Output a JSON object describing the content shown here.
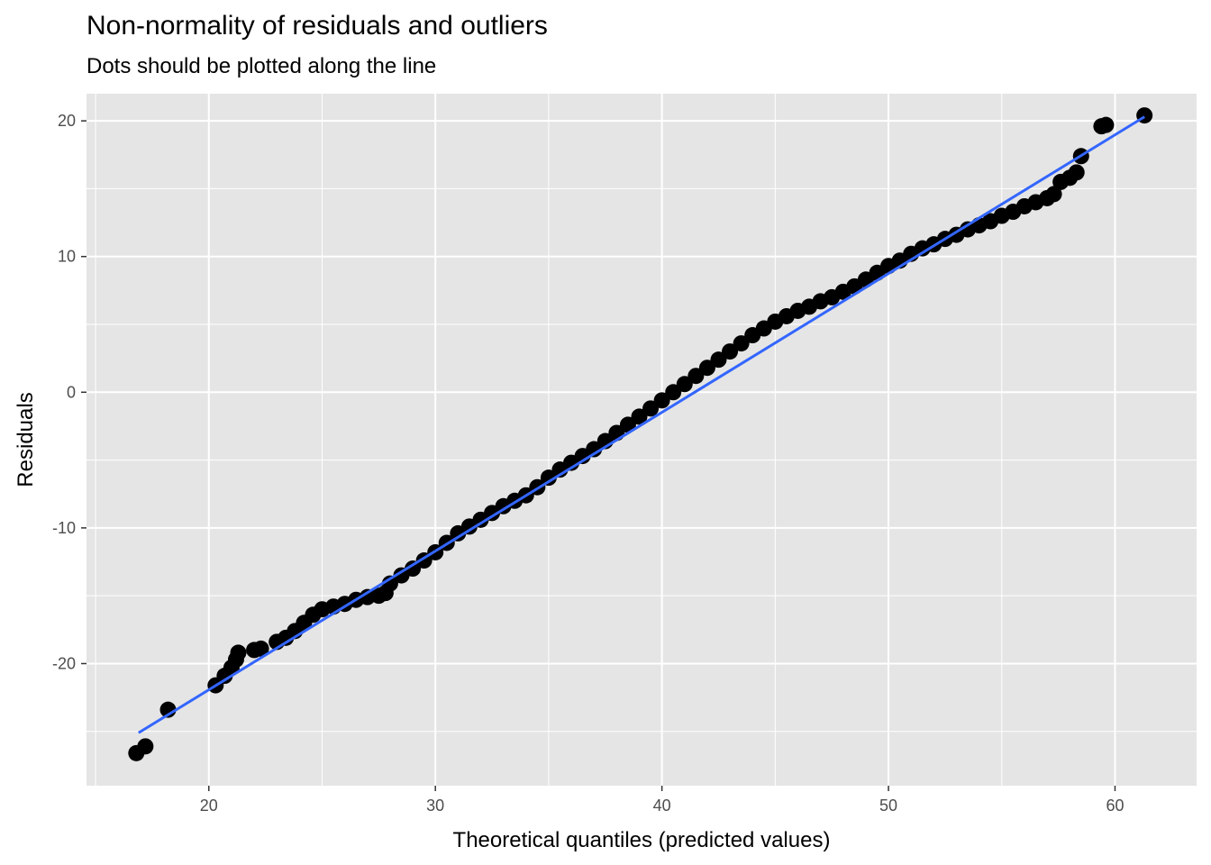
{
  "chart_data": {
    "type": "scatter",
    "title": "Non-normality of residuals and outliers",
    "subtitle": "Dots should be plotted along the line",
    "xlabel": "Theoretical quantiles (predicted values)",
    "ylabel": "Residuals",
    "xlim": [
      14.6,
      63.6
    ],
    "ylim": [
      -29.0,
      22.0
    ],
    "x_ticks": [
      20,
      30,
      40,
      50,
      60
    ],
    "y_ticks": [
      -20,
      -10,
      0,
      10,
      20
    ],
    "x_tick_labels": [
      "20",
      "30",
      "40",
      "50",
      "60"
    ],
    "y_tick_labels": [
      "-20",
      "-10",
      "0",
      "10",
      "20"
    ],
    "grid": true,
    "colors": {
      "panel": "#e5e5e5",
      "grid": "#ffffff",
      "points": "#000000",
      "line": "#3366ff"
    },
    "reference_line": {
      "x": [
        16.9,
        61.3
      ],
      "y": [
        -25.1,
        20.3
      ]
    },
    "points": {
      "x": [
        16.8,
        17.2,
        18.2,
        20.3,
        20.7,
        21.0,
        21.2,
        21.3,
        22.0,
        22.3,
        23.0,
        23.4,
        23.8,
        24.2,
        24.6,
        25.0,
        25.5,
        26.0,
        26.5,
        27.0,
        27.5,
        27.8,
        28.0,
        28.5,
        29.0,
        29.5,
        30.0,
        30.5,
        31.0,
        31.5,
        32.0,
        32.5,
        33.0,
        33.5,
        34.0,
        34.5,
        35.0,
        35.5,
        36.0,
        36.5,
        37.0,
        37.5,
        38.0,
        38.5,
        39.0,
        39.5,
        40.0,
        40.5,
        41.0,
        41.5,
        42.0,
        42.5,
        43.0,
        43.5,
        44.0,
        44.5,
        45.0,
        45.5,
        46.0,
        46.5,
        47.0,
        47.5,
        48.0,
        48.5,
        49.0,
        49.5,
        50.0,
        50.5,
        51.0,
        51.5,
        52.0,
        52.5,
        53.0,
        53.5,
        54.0,
        54.5,
        55.0,
        55.5,
        56.0,
        56.5,
        57.0,
        57.3,
        57.6,
        58.0,
        58.3,
        58.5,
        59.4,
        59.6,
        61.3
      ],
      "y": [
        -26.6,
        -26.1,
        -23.4,
        -21.6,
        -20.9,
        -20.3,
        -19.7,
        -19.2,
        -19.0,
        -18.9,
        -18.4,
        -18.1,
        -17.6,
        -17.0,
        -16.4,
        -16.0,
        -15.8,
        -15.6,
        -15.3,
        -15.1,
        -15.0,
        -14.8,
        -14.1,
        -13.5,
        -13.0,
        -12.4,
        -11.8,
        -11.1,
        -10.4,
        -9.9,
        -9.4,
        -8.9,
        -8.4,
        -8.0,
        -7.6,
        -7.0,
        -6.3,
        -5.7,
        -5.2,
        -4.7,
        -4.2,
        -3.6,
        -3.0,
        -2.4,
        -1.8,
        -1.2,
        -0.6,
        0.0,
        0.6,
        1.2,
        1.8,
        2.4,
        3.0,
        3.6,
        4.2,
        4.7,
        5.2,
        5.6,
        6.0,
        6.3,
        6.7,
        7.0,
        7.4,
        7.8,
        8.3,
        8.8,
        9.3,
        9.7,
        10.2,
        10.6,
        10.9,
        11.3,
        11.6,
        12.0,
        12.3,
        12.6,
        13.0,
        13.3,
        13.7,
        14.0,
        14.3,
        14.6,
        15.5,
        15.8,
        16.2,
        17.4,
        19.6,
        19.7,
        20.4
      ]
    }
  }
}
